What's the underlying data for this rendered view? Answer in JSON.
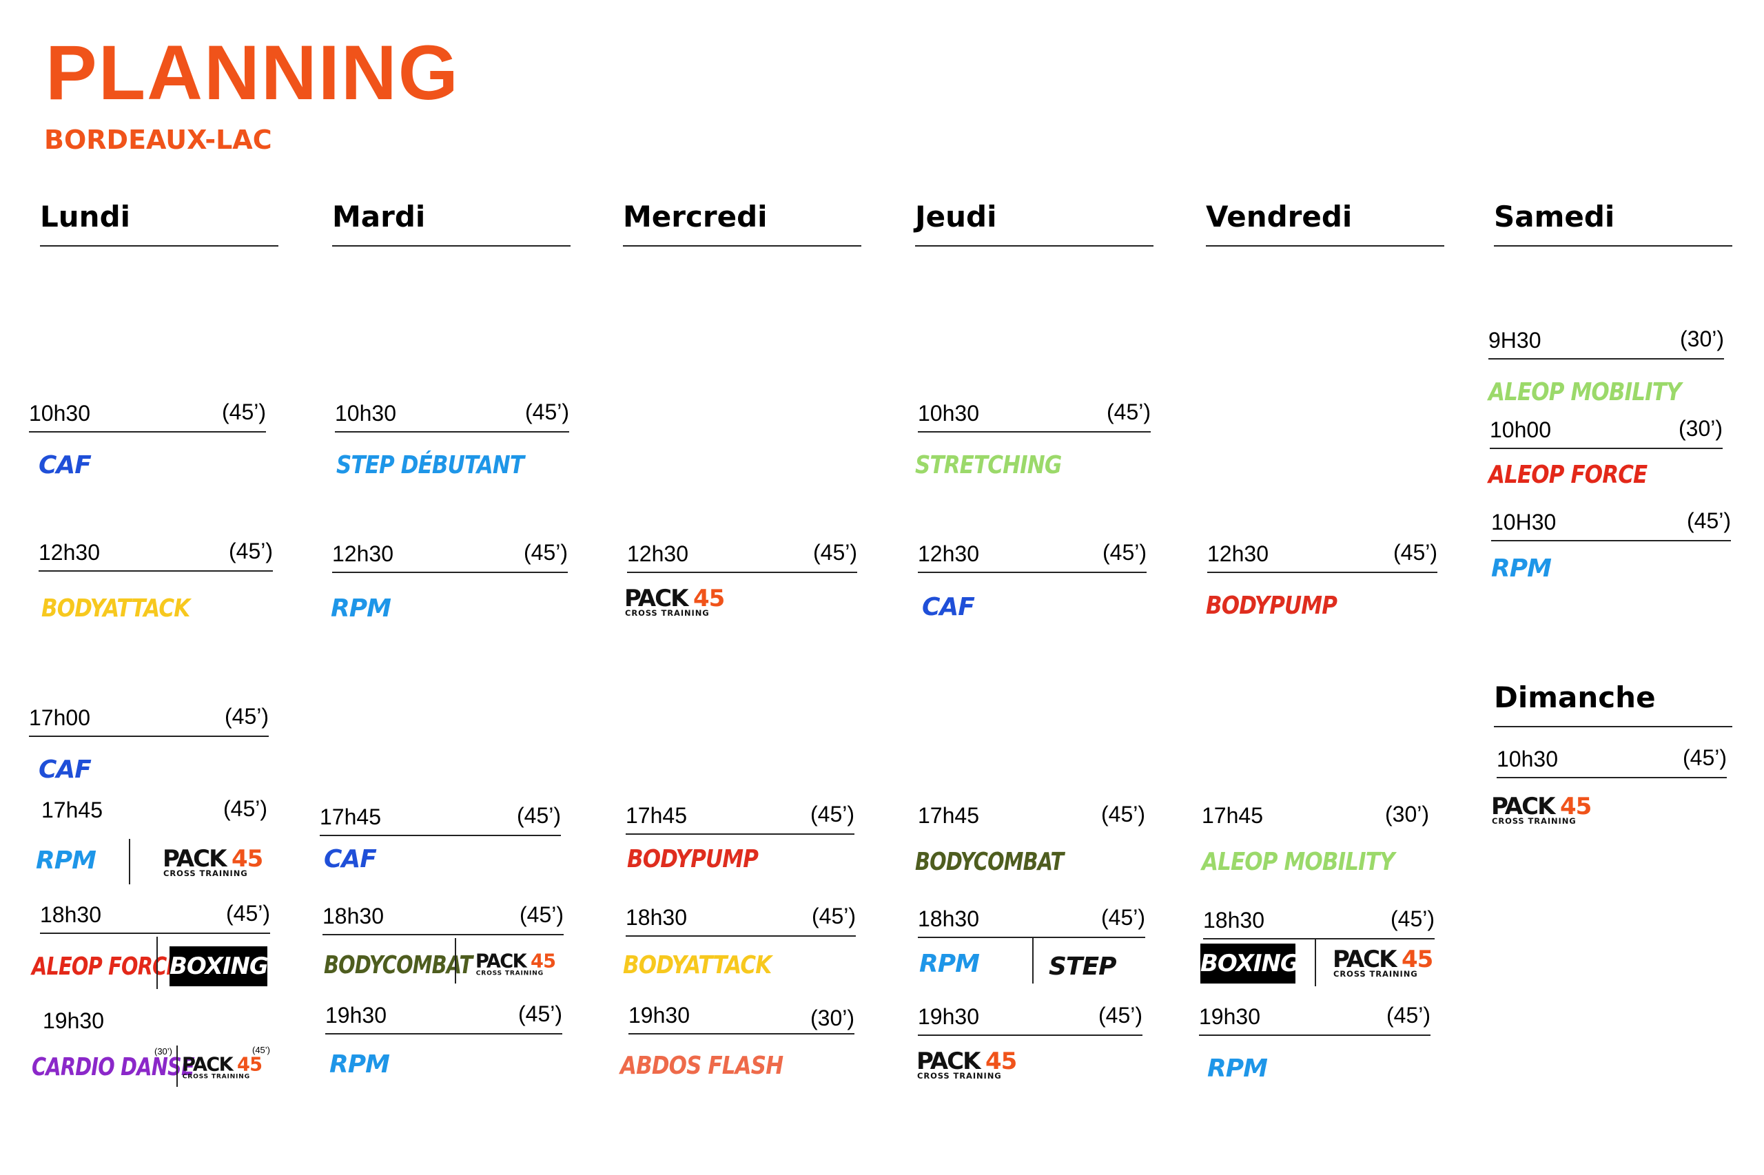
{
  "header": {
    "title": "PLANNING",
    "subtitle": "BORDEAUX-LAC"
  },
  "colors": {
    "brand_orange": "#f0531a",
    "caf_blue": "#1f4fd8",
    "rpm_blue": "#1e96e8",
    "bodyattack_yellow": "#f7c81e",
    "stretching_green": "#9bd96a",
    "aleop_mobility_green": "#9bd96a",
    "aleop_force_red": "#e32819",
    "bodypump_red": "#df2d1e",
    "bodycombat_olive": "#4e5d1f",
    "cardio_danse_purple": "#8b28c9",
    "abdos_flash_coral": "#ee6a4a"
  },
  "pack_logo": {
    "word": "PACK",
    "number": "45",
    "tagline": "CROSS TRAINING"
  },
  "days": {
    "lundi": {
      "label": "Lundi",
      "slots": [
        {
          "time": "10h30",
          "duration": "(45’)",
          "class": "CAF"
        },
        {
          "time": "12h30",
          "duration": "(45’)",
          "class": "BODYATTACK"
        },
        {
          "time": "17h00",
          "duration": "(45’)",
          "class": "CAF"
        },
        {
          "time": "17h45",
          "duration": "(45’)",
          "class": "RPM"
        },
        {
          "time": "18h30",
          "duration": "(45’)",
          "class": "ALEOP FORCE",
          "class2": "BOXING"
        },
        {
          "time": "19h30",
          "duration": "",
          "class": "CARDIO DANSE",
          "class_duration": "(30’)",
          "pack_duration": "(45’)"
        }
      ]
    },
    "mardi": {
      "label": "Mardi",
      "slots": [
        {
          "time": "10h30",
          "duration": "(45’)",
          "class": "STEP DÉBUTANT"
        },
        {
          "time": "12h30",
          "duration": "(45’)",
          "class": "RPM"
        },
        {
          "time": "17h45",
          "duration": "(45’)",
          "class": "CAF"
        },
        {
          "time": "18h30",
          "duration": "(45’)",
          "class": "BODYCOMBAT"
        },
        {
          "time": "19h30",
          "duration": "(45’)",
          "class": "RPM"
        }
      ]
    },
    "mercredi": {
      "label": "Mercredi",
      "slots": [
        {
          "time": "12h30",
          "duration": "(45’)"
        },
        {
          "time": "17h45",
          "duration": "(45’)",
          "class": "BODYPUMP"
        },
        {
          "time": "18h30",
          "duration": "(45’)",
          "class": "BODYATTACK"
        },
        {
          "time": "19h30",
          "duration": "(30’)",
          "class": "ABDOS FLASH"
        }
      ]
    },
    "jeudi": {
      "label": "Jeudi",
      "slots": [
        {
          "time": "10h30",
          "duration": "(45’)",
          "class": "STRETCHING"
        },
        {
          "time": "12h30",
          "duration": "(45’)",
          "class": "CAF"
        },
        {
          "time": "17h45",
          "duration": "(45’)",
          "class": "BODYCOMBAT"
        },
        {
          "time": "18h30",
          "duration": "(45’)",
          "class": "RPM",
          "class2": "STEP"
        },
        {
          "time": "19h30",
          "duration": "(45’)"
        }
      ]
    },
    "vendredi": {
      "label": "Vendredi",
      "slots": [
        {
          "time": "12h30",
          "duration": "(45’)",
          "class": "BODYPUMP"
        },
        {
          "time": "17h45",
          "duration": "(30’)",
          "class": "ALEOP MOBILITY"
        },
        {
          "time": "18h30",
          "duration": "(45’)",
          "class": "BOXING"
        },
        {
          "time": "19h30",
          "duration": "(45’)",
          "class": "RPM"
        }
      ]
    },
    "samedi": {
      "label": "Samedi",
      "slots": [
        {
          "time": "9H30",
          "duration": "(30’)",
          "class": "ALEOP MOBILITY"
        },
        {
          "time": "10h00",
          "duration": "(30’)",
          "class": "ALEOP FORCE"
        },
        {
          "time": "10H30",
          "duration": "(45’)",
          "class": "RPM"
        }
      ]
    },
    "dimanche": {
      "label": "Dimanche",
      "slots": [
        {
          "time": "10h30",
          "duration": "(45’)"
        }
      ]
    }
  }
}
